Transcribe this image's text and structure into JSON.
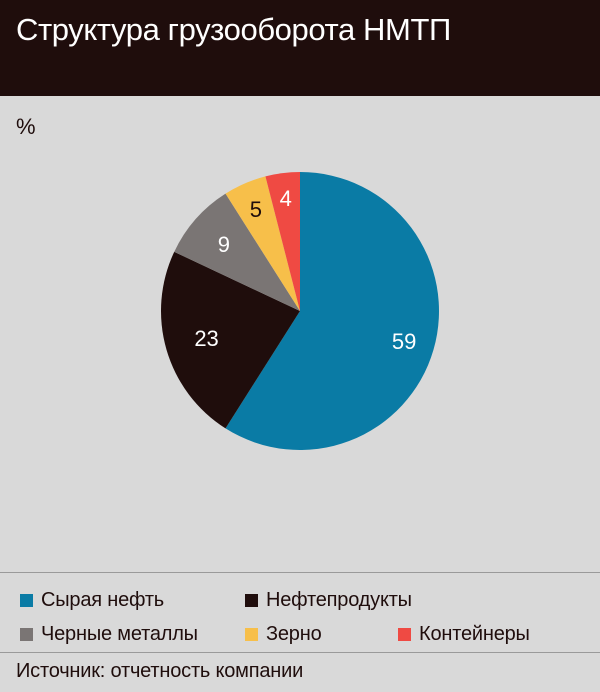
{
  "header": {
    "title": "Структура грузооборота НМТП"
  },
  "unit_label": "%",
  "source": "Источник: отчетность компании",
  "colors": {
    "header_bg": "#1f0d0c",
    "page_bg": "#d9d9d9",
    "crude_oil": "#0a7ba5",
    "oil_products": "#1f0d0c",
    "ferrous_metals": "#7a7574",
    "grain": "#f7bf4a",
    "containers": "#ef4a43",
    "label_light": "#ffffff",
    "label_dark": "#1f0d0c"
  },
  "legend": [
    {
      "label": "Сырая нефть",
      "color": "#0a7ba5"
    },
    {
      "label": "Нефтепродукты",
      "color": "#1f0d0c"
    },
    {
      "label": "Черные металлы",
      "color": "#7a7574"
    },
    {
      "label": "Зерно",
      "color": "#f7bf4a"
    },
    {
      "label": "Контейнеры",
      "color": "#ef4a43"
    }
  ],
  "chart_data": {
    "type": "pie",
    "title": "Структура грузооборота НМТП",
    "unit": "%",
    "slices": [
      {
        "name": "Сырая нефть",
        "value": 59,
        "label": "59",
        "color": "#0a7ba5",
        "label_color": "#ffffff"
      },
      {
        "name": "Нефтепродукты",
        "value": 23,
        "label": "23",
        "color": "#1f0d0c",
        "label_color": "#ffffff"
      },
      {
        "name": "Черные металлы",
        "value": 9,
        "label": "9",
        "color": "#7a7574",
        "label_color": "#ffffff"
      },
      {
        "name": "Зерно",
        "value": 5,
        "label": "5",
        "color": "#f7bf4a",
        "label_color": "#1f0d0c"
      },
      {
        "name": "Контейнеры",
        "value": 4,
        "label": "4",
        "color": "#ef4a43",
        "label_color": "#ffffff"
      }
    ],
    "start_angle": "12 o'clock",
    "direction": "clockwise",
    "legend_position": "bottom"
  }
}
